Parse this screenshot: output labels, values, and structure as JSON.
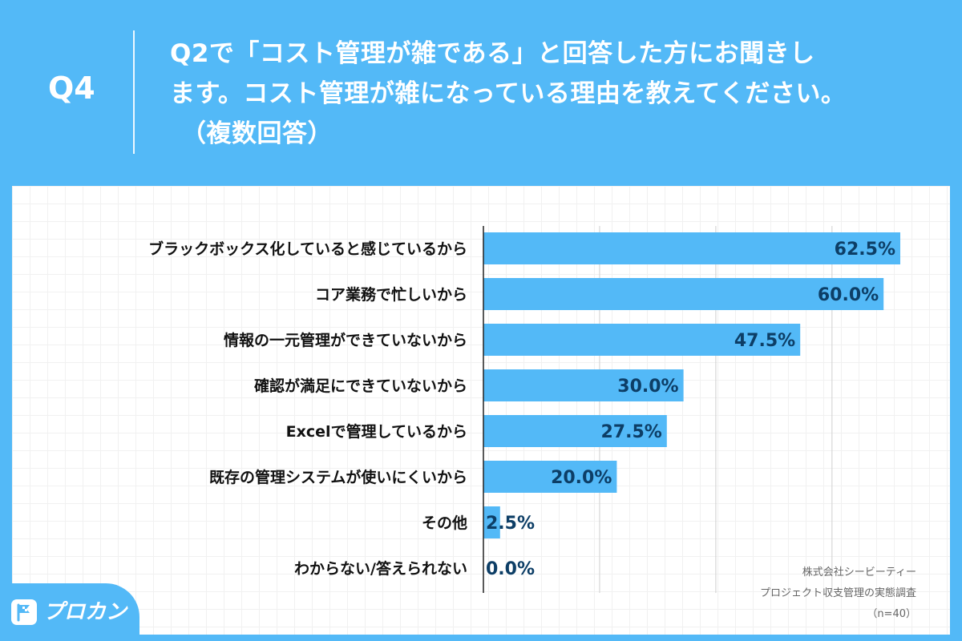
{
  "header": {
    "question_number": "Q4",
    "question_lines": [
      "Q2で「コスト管理が雑である」と回答した方にお聞きし",
      "ます。コスト管理が雑になっている理由を教えてください。",
      "（複数回答）"
    ]
  },
  "colors": {
    "background": "#53b9f7",
    "bar": "#53b9f7",
    "value_text": "#0d3e66",
    "panel": "#ffffff"
  },
  "chart_data": {
    "type": "bar",
    "orientation": "horizontal",
    "categories": [
      "ブラックボックス化していると感じているから",
      "コア業務で忙しいから",
      "情報の一元管理ができていないから",
      "確認が満足にできていないから",
      "Excelで管理しているから",
      "既存の管理システムが使いにくいから",
      "その他",
      "わからない/答えられない"
    ],
    "values": [
      62.5,
      60.0,
      47.5,
      30.0,
      27.5,
      20.0,
      2.5,
      0.0
    ],
    "value_labels": [
      "62.5%",
      "60.0%",
      "47.5%",
      "30.0%",
      "27.5%",
      "20.0%",
      "2.5%",
      "0.0%"
    ],
    "xlim": [
      0,
      62.5
    ],
    "grid": true
  },
  "source": {
    "company": "株式会社シービーティー",
    "survey": "プロジェクト収支管理の実態調査",
    "sample": "（n=40）"
  },
  "logo": {
    "text": "プロカン",
    "icon": "flag-icon"
  }
}
